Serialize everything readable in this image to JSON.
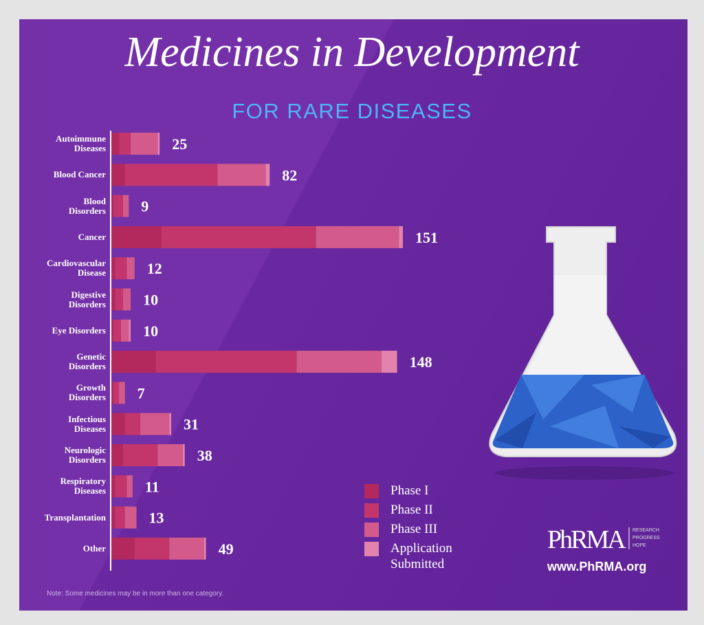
{
  "chart_data": {
    "type": "stacked-bar-horizontal",
    "title": "Medicines in Development",
    "subtitle": "FOR RARE DISEASES",
    "categories": [
      "Autoimmune\nDiseases",
      "Blood Cancer",
      "Blood\nDisorders",
      "Cancer",
      "Cardiovascular\nDisease",
      "Digestive\nDisorders",
      "Eye Disorders",
      "Genetic\nDisorders",
      "Growth\nDisorders",
      "Infectious\nDiseases",
      "Neurologic\nDisorders",
      "Respiratory\nDiseases",
      "Transplantation",
      "Other"
    ],
    "series": [
      {
        "name": "Phase I",
        "color": "#b3285d",
        "values": [
          4,
          7,
          1,
          26,
          2,
          2,
          1,
          23,
          1,
          7,
          6,
          2,
          2,
          12
        ]
      },
      {
        "name": "Phase II",
        "color": "#c2366b",
        "values": [
          6,
          48,
          5,
          80,
          6,
          4,
          4,
          73,
          3,
          8,
          18,
          6,
          5,
          18
        ]
      },
      {
        "name": "Phase III",
        "color": "#d35b8c",
        "values": [
          14,
          25,
          3,
          43,
          4,
          4,
          4,
          44,
          3,
          15,
          13,
          3,
          6,
          18
        ]
      },
      {
        "name": "Application\nSubmitted",
        "color": "#e383ad",
        "values": [
          1,
          2,
          0,
          2,
          0,
          0,
          1,
          8,
          0,
          1,
          1,
          0,
          0,
          1
        ]
      }
    ],
    "totals": [
      25,
      82,
      9,
      151,
      12,
      10,
      10,
      148,
      7,
      31,
      38,
      11,
      13,
      49
    ],
    "note": "Note: Some medicines may be in more than one category.",
    "logo": {
      "name": "PhRMA",
      "tagline": [
        "RESEARCH",
        "PROGRESS",
        "HOPE"
      ],
      "url": "www.PhRMA.org"
    }
  }
}
